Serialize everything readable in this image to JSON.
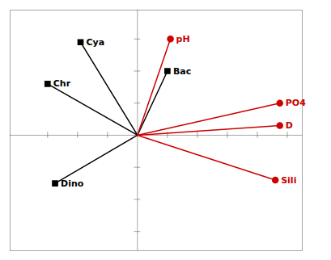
{
  "chart_data": {
    "type": "biplot",
    "xlim": [
      -0.85,
      1.1
    ],
    "ylim": [
      -0.72,
      0.78
    ],
    "xticks": [
      -0.6,
      -0.4,
      -0.2,
      0.2,
      0.4,
      0.6,
      0.8,
      1.0
    ],
    "yticks": [
      -0.6,
      -0.4,
      -0.2,
      0.2,
      0.4,
      0.6
    ],
    "tick_labels": false,
    "grid": false,
    "series": [
      {
        "color": "#000000",
        "marker": "square",
        "labels": [
          "Cya",
          "Chr",
          "Bac",
          "Dino"
        ],
        "x": [
          -0.38,
          -0.6,
          0.2,
          -0.55
        ],
        "y": [
          0.58,
          0.32,
          0.4,
          -0.3
        ]
      },
      {
        "color": "#cc0000",
        "marker": "circle",
        "labels": [
          "pH",
          "PO4",
          "D",
          "Sili"
        ],
        "x": [
          0.22,
          0.95,
          0.95,
          0.92
        ],
        "y": [
          0.6,
          0.2,
          0.06,
          -0.28
        ]
      }
    ]
  }
}
